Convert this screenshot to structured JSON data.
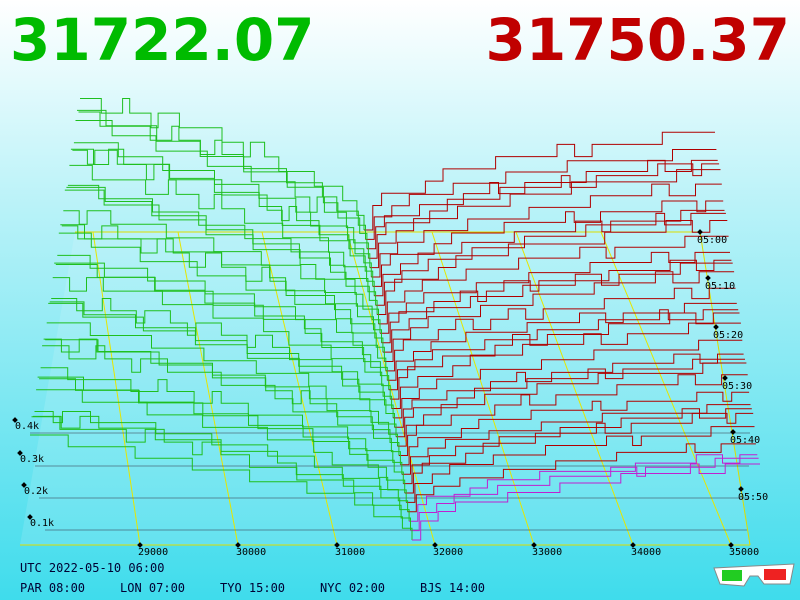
{
  "header": {
    "bid_price": "31722.07",
    "ask_price": "31750.37"
  },
  "price_axis": {
    "ticks": [
      "29000",
      "30000",
      "31000",
      "32000",
      "33000",
      "34000",
      "35000"
    ]
  },
  "depth_axis": {
    "ticks": [
      "0.1k",
      "0.2k",
      "0.3k",
      "0.4k"
    ]
  },
  "time_axis": {
    "ticks": [
      "05:00",
      "05:10",
      "05:20",
      "05:30",
      "05:40",
      "05:50"
    ]
  },
  "footer": {
    "utc": "UTC 2022-05-10 06:00",
    "clocks": [
      "PAR 08:00",
      "LON 07:00",
      "TYO 15:00",
      "NYC 02:00",
      "BJS 14:00"
    ]
  }
}
